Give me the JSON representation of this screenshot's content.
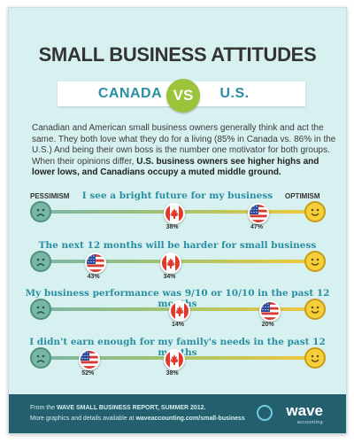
{
  "title": "SMALL BUSINESS ATTITUDES",
  "vs_left": "CANADA",
  "vs_center": "VS",
  "vs_right": "U.S.",
  "intro_plain": "Canadian and American small business owners generally think and act the same. They both love what they do for a living (85% in Canada vs. 86% in the U.S.) And being their own boss is the number one motivator for both groups. When their opinions differ,",
  "intro_bold": "U.S. business owners see higher highs and lower lows, and Canadians occupy a muted middle ground.",
  "pessimism_label": "PESSIMISM",
  "optimism_label": "OPTIMISM",
  "chart_data": {
    "type": "scatter",
    "x_scale": "pessimism-to-optimism",
    "series": [
      {
        "key": "canada",
        "color": "#e03a2f"
      },
      {
        "key": "us",
        "color": "#2b4b9a"
      }
    ],
    "rows": [
      {
        "question": "I see a bright future for my business",
        "canada": 38,
        "us": 47,
        "canada_label": "38%",
        "us_label": "47%",
        "position_canada": 0.48,
        "position_us": 0.78
      },
      {
        "question": "The next 12 months will be harder for small business",
        "canada": 34,
        "us": 43,
        "canada_label": "34%",
        "us_label": "43%",
        "position_canada": 0.47,
        "position_us": 0.2
      },
      {
        "question": "My business performance was 9/10 or 10/10 in the past 12 months",
        "canada": 14,
        "us": 20,
        "canada_label": "14%",
        "us_label": "20%",
        "position_canada": 0.5,
        "position_us": 0.82
      },
      {
        "question": "I didn't earn enough for my family's needs in the past 12 months",
        "canada": 38,
        "us": 52,
        "canada_label": "38%",
        "us_label": "52%",
        "position_canada": 0.48,
        "position_us": 0.18
      }
    ]
  },
  "footer": {
    "line1_prefix": "From the ",
    "line1_bold": "WAVE SMALL BUSINESS REPORT, SUMMER 2012.",
    "line2_prefix": "More graphics and details available at ",
    "line2_bold": "waveaccounting.com/small-business",
    "logo": "wave",
    "logo_sub": "accounting"
  }
}
